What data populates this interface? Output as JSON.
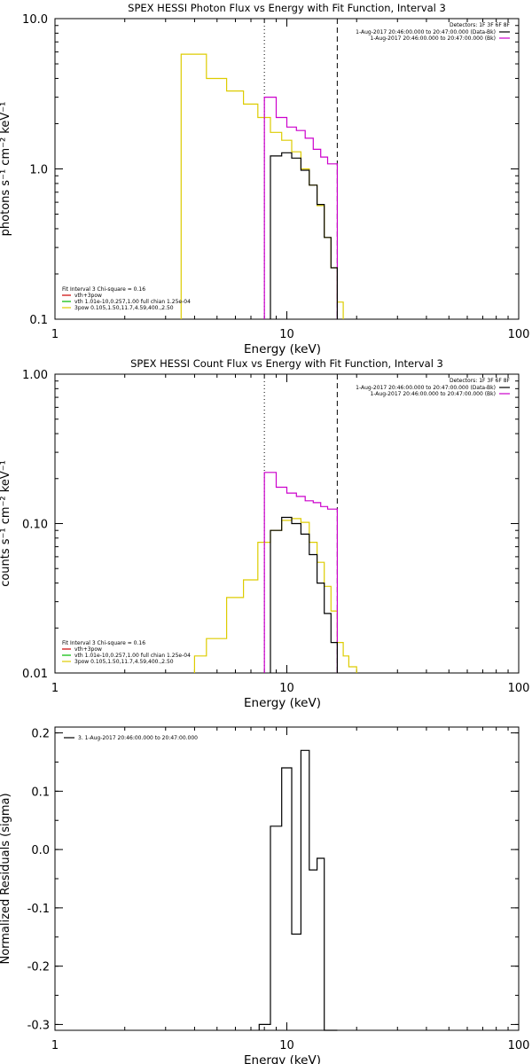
{
  "chart_data": [
    {
      "type": "line",
      "title": "SPEX HESSI Photon Flux vs Energy with Fit Function, Interval 3",
      "xlabel": "Energy (keV)",
      "ylabel": "photons s⁻¹ cm⁻² keV⁻¹",
      "xscale": "log",
      "yscale": "log",
      "xlim": [
        1,
        100
      ],
      "ylim": [
        0.1,
        10
      ],
      "x_tick_labels": [
        "1",
        "10",
        "100"
      ],
      "y_tick_labels": [
        "0.1",
        "1.0",
        "10.0"
      ],
      "markers": [
        {
          "x": 8,
          "style": "dotted"
        },
        {
          "x": 16.5,
          "style": "dashed"
        }
      ],
      "legend_top": {
        "placement": "top-right",
        "header": "Detectors: 1F 3F 6F 8F",
        "lines": [
          {
            "text": "1-Aug-2017 20:46:00.000 to 20:47:00.000 (Data-Bk)",
            "color": "#000000"
          },
          {
            "text": "1-Aug-2017 20:46:00.000 to 20:47:00.000 (Bk)",
            "color": "#cc00cc"
          }
        ]
      },
      "legend_fit": {
        "placement": "bottom-left",
        "header": "Fit Interval 3   Chi-square = 0.16",
        "items": [
          {
            "text": "vth+3pow",
            "color": "#cc0000"
          },
          {
            "text": "vth 1.01e-10,0.257,1.00  full chian 1.25e-04",
            "color": "#00bb00"
          },
          {
            "text": "3pow 0.105,1.50,11.7,4.59,400.,2.50",
            "color": "#ddcc00"
          }
        ]
      },
      "series": [
        {
          "color": "#ddcc00",
          "edges": [
            3.5,
            4.5,
            5.5,
            6.5,
            7.5,
            8.5,
            9.5,
            10.5,
            11.5,
            12.5,
            13.5,
            14.5,
            15.5,
            16.5,
            17.5
          ],
          "values": [
            5.8,
            4.0,
            3.3,
            2.7,
            2.2,
            1.75,
            1.55,
            1.3,
            1.0,
            0.78,
            0.57,
            0.35,
            0.22,
            0.13
          ],
          "extend_to": 0.1
        },
        {
          "color": "#cc00cc",
          "edges": [
            8,
            9,
            10,
            11,
            12,
            13,
            14,
            15,
            16.5
          ],
          "values": [
            3.0,
            2.2,
            1.9,
            1.8,
            1.6,
            1.35,
            1.2,
            1.08
          ],
          "extend_to": 0.1
        },
        {
          "color": "#000000",
          "edges": [
            8.5,
            9.5,
            10.5,
            11.5,
            12.5,
            13.5,
            14.5,
            15.5,
            16.5
          ],
          "values": [
            1.22,
            1.28,
            1.18,
            0.98,
            0.78,
            0.58,
            0.35,
            0.22
          ],
          "extend_to": 0.1
        }
      ]
    },
    {
      "type": "line",
      "title": "SPEX HESSI Count Flux vs Energy with Fit Function, Interval 3",
      "xlabel": "Energy (keV)",
      "ylabel": "counts s⁻¹ cm⁻² keV⁻¹",
      "xscale": "log",
      "yscale": "log",
      "xlim": [
        1,
        100
      ],
      "ylim": [
        0.01,
        1
      ],
      "x_tick_labels": [
        "1",
        "10",
        "100"
      ],
      "y_tick_labels": [
        "0.01",
        "0.10",
        "1.00"
      ],
      "markers": [
        {
          "x": 8,
          "style": "dotted"
        },
        {
          "x": 16.5,
          "style": "dashed"
        }
      ],
      "legend_top": {
        "placement": "top-right",
        "header": "Detectors: 1F 3F 6F 8F",
        "lines": [
          {
            "text": "1-Aug-2017 20:46:00.000 to 20:47:00.000 (Data-Bk)",
            "color": "#000000"
          },
          {
            "text": "1-Aug-2017 20:46:00.000 to 20:47:00.000 (Bk)",
            "color": "#cc00cc"
          }
        ]
      },
      "legend_fit": {
        "placement": "bottom-left",
        "header": "Fit Interval 3   Chi-square = 0.16",
        "items": [
          {
            "text": "vth+3pow",
            "color": "#cc0000"
          },
          {
            "text": "vth 1.01e-10,0.257,1.00  full chian 1.25e-04",
            "color": "#00bb00"
          },
          {
            "text": "3pow 0.105,1.50,11.7,4.59,400.,2.50",
            "color": "#ddcc00"
          }
        ]
      },
      "series": [
        {
          "color": "#ddcc00",
          "edges": [
            4,
            4.5,
            5.5,
            6.5,
            7.5,
            8.5,
            9.5,
            10.5,
            11.5,
            12.5,
            13.5,
            14.5,
            15.5,
            16.5,
            17.5,
            18.5,
            20
          ],
          "values": [
            0.013,
            0.017,
            0.032,
            0.042,
            0.075,
            0.09,
            0.105,
            0.108,
            0.102,
            0.075,
            0.055,
            0.038,
            0.026,
            0.016,
            0.013,
            0.011
          ],
          "extend_to": 0.01
        },
        {
          "color": "#cc00cc",
          "edges": [
            8,
            9,
            10,
            11,
            12,
            13,
            14,
            15,
            16.5
          ],
          "values": [
            0.22,
            0.175,
            0.16,
            0.152,
            0.142,
            0.138,
            0.13,
            0.125
          ],
          "extend_to": 0.01
        },
        {
          "color": "#000000",
          "edges": [
            8.5,
            9.5,
            10.5,
            11.5,
            12.5,
            13.5,
            14.5,
            15.5,
            16.5
          ],
          "values": [
            0.09,
            0.11,
            0.1,
            0.085,
            0.062,
            0.04,
            0.025,
            0.016
          ],
          "extend_to": 0.01
        }
      ]
    },
    {
      "type": "line",
      "title": "",
      "xlabel": "Energy (keV)",
      "ylabel": "Normalized Residuals (sigma)",
      "xscale": "log",
      "yscale": "linear",
      "xlim": [
        1,
        100
      ],
      "ylim": [
        -0.31,
        0.21
      ],
      "x_tick_labels": [
        "1",
        "10",
        "100"
      ],
      "y_ticks": [
        -0.3,
        -0.2,
        -0.1,
        0.0,
        0.1,
        0.2
      ],
      "y_tick_labels": [
        "-0.3",
        "-0.2",
        "-0.1",
        "0.0",
        "0.1",
        "0.2"
      ],
      "legend_top": {
        "placement": "top-left",
        "lines": [
          {
            "text": "3.  1-Aug-2017 20:46:00.000 to 20:47:00.000",
            "color": "#000000"
          }
        ]
      },
      "series": [
        {
          "color": "#000000",
          "edges": [
            7.6,
            8.5,
            9.5,
            10.5,
            11.5,
            12.5,
            13.5,
            14.5,
            16.5
          ],
          "values": [
            -0.3,
            0.04,
            0.14,
            -0.145,
            0.17,
            -0.035,
            -0.015,
            -0.31
          ],
          "extend_to": -0.31
        }
      ]
    }
  ]
}
